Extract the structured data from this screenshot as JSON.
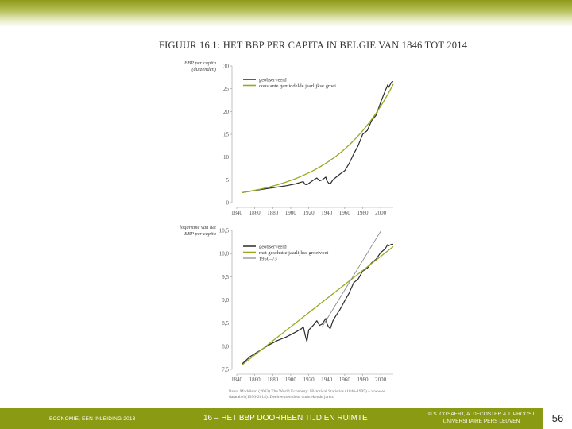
{
  "figure_title": "FIGUUR 16.1: HET BBP PER CAPITA IN BELGIE VAN 1846 TOT 2014",
  "source_note": "Bron: Maddison (2003) The World Economy: Historical Statistics (1846-1995) – www.ec ... datatabel (1996-2014). Deelreeksen door ontbrekende jaren.",
  "footer": {
    "left": "ECONOMIE, EEN INLEIDING 2013",
    "center": "16 – HET BBP DOORHEEN TIJD EN RUIMTE",
    "right_line1": "© S. COSAERT, A. DECOSTER & T. PROOST",
    "right_line2": "UNIVERSITAIRE PERS LEUVEN",
    "page": "56"
  },
  "colors": {
    "band": "#8a9a12",
    "actual": "#2b2b2b",
    "trend": "#9aa81f",
    "segment": "#888888"
  },
  "chart_data": [
    {
      "type": "line",
      "ylabel_line1": "BBP per capita",
      "ylabel_line2": "(duizenden)",
      "xticks": [
        "1840",
        "1860",
        "1880",
        "1900",
        "1920",
        "1940",
        "1960",
        "1980",
        "2000"
      ],
      "yticks": [
        "0",
        "5",
        "10",
        "15",
        "20",
        "25",
        "30"
      ],
      "xlim": [
        1840,
        2014
      ],
      "ylim": [
        0,
        30
      ],
      "legend": [
        "geobserveerd",
        "constante gemiddelde jaarlijkse groei"
      ],
      "series": [
        {
          "name": "geobserveerd",
          "x": [
            1846,
            1855,
            1865,
            1875,
            1885,
            1895,
            1905,
            1912,
            1914,
            1916,
            1918,
            1920,
            1925,
            1929,
            1932,
            1935,
            1939,
            1940,
            1942,
            1944,
            1947,
            1950,
            1955,
            1960,
            1965,
            1970,
            1975,
            1980,
            1985,
            1990,
            1995,
            2000,
            2005,
            2008,
            2009,
            2012,
            2014
          ],
          "y": [
            2.2,
            2.5,
            2.8,
            3.1,
            3.4,
            3.7,
            4.1,
            4.5,
            4.6,
            4.0,
            3.9,
            4.2,
            4.9,
            5.4,
            4.8,
            5.0,
            5.6,
            4.9,
            4.3,
            4.1,
            5.0,
            5.5,
            6.3,
            7.0,
            8.6,
            10.7,
            12.5,
            15.0,
            15.8,
            18.0,
            19.2,
            22.0,
            24.5,
            25.9,
            25.3,
            26.4,
            26.6
          ]
        },
        {
          "name": "constante gemiddelde jaarlijkse groei",
          "x": [
            1846,
            1860,
            1880,
            1900,
            1920,
            1940,
            1960,
            1980,
            2000,
            2014
          ],
          "y": [
            2.2,
            2.5,
            3.05,
            3.8,
            4.7,
            6.3,
            9.5,
            14.5,
            21.5,
            26.0
          ]
        }
      ]
    },
    {
      "type": "line",
      "ylabel_line1": "logaritme van het",
      "ylabel_line2": "BBP per capita",
      "xticks": [
        "1840",
        "1860",
        "1880",
        "1900",
        "1920",
        "1940",
        "1960",
        "1980",
        "2000"
      ],
      "yticks": [
        "7,5",
        "8,0",
        "8,5",
        "9,0",
        "9,5",
        "10,0",
        "10,5"
      ],
      "xlim": [
        1840,
        2014
      ],
      "ylim": [
        7.5,
        10.5
      ],
      "legend": [
        "geobserveerd",
        "met geschatte jaarlijkse groeivoet",
        "1950–73"
      ],
      "series": [
        {
          "name": "geobserveerd",
          "x": [
            1846,
            1855,
            1865,
            1875,
            1885,
            1895,
            1905,
            1912,
            1914,
            1916,
            1918,
            1920,
            1925,
            1929,
            1932,
            1935,
            1939,
            1940,
            1942,
            1944,
            1947,
            1950,
            1955,
            1960,
            1965,
            1970,
            1975,
            1980,
            1985,
            1990,
            1995,
            2000,
            2005,
            2008,
            2009,
            2012,
            2014
          ],
          "y": [
            7.62,
            7.78,
            7.9,
            8.02,
            8.12,
            8.2,
            8.3,
            8.38,
            8.42,
            8.25,
            8.1,
            8.35,
            8.45,
            8.55,
            8.45,
            8.48,
            8.6,
            8.5,
            8.42,
            8.38,
            8.55,
            8.65,
            8.8,
            8.98,
            9.15,
            9.37,
            9.45,
            9.62,
            9.68,
            9.8,
            9.88,
            10.02,
            10.1,
            10.2,
            10.17,
            10.2,
            10.2
          ]
        },
        {
          "name": "met geschatte jaarlijkse groeivoet",
          "x": [
            1846,
            2014
          ],
          "y": [
            7.6,
            10.15
          ]
        },
        {
          "name": "1950–73",
          "x": [
            1935,
            2000
          ],
          "y": [
            8.42,
            10.48
          ]
        }
      ]
    }
  ]
}
